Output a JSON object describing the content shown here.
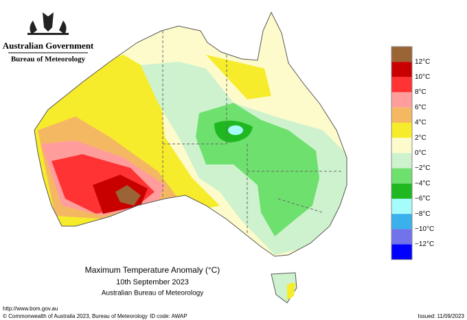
{
  "header": {
    "government": "Australian Government",
    "agency": "Bureau of Meteorology"
  },
  "map": {
    "title": "Maximum Temperature Anomaly (°C)",
    "date": "10th September 2023",
    "source": "Australian Bureau of Meteorology"
  },
  "legend": {
    "colors": [
      "#9a6436",
      "#c80000",
      "#ff3333",
      "#ff9d9d",
      "#f5b862",
      "#f6ec2c",
      "#fdfbcb",
      "#cdf2cd",
      "#6ee06e",
      "#20b820",
      "#a6fbfb",
      "#3ab0ec",
      "#7272ea",
      "#0000ff"
    ],
    "labels": [
      "12°C",
      "10°C",
      "8°C",
      "6°C",
      "4°C",
      "2°C",
      "0°C",
      "−2°C",
      "−4°C",
      "−6°C",
      "−8°C",
      "−10°C",
      "−12°C"
    ]
  },
  "footer": {
    "url": "http://www.bom.gov.au",
    "copyright": "© Commonwealth of Australia 2023, Bureau of Meteorology",
    "id_code": "ID code: AWAP",
    "issued": "Issued: 11/09/2023"
  }
}
